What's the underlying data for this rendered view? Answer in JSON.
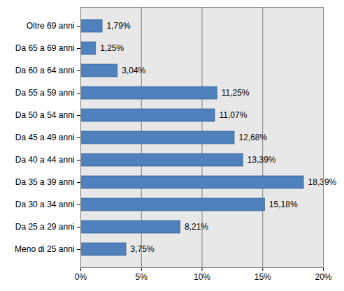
{
  "chart_data": {
    "type": "bar",
    "orientation": "horizontal",
    "categories": [
      "Oltre 69 anni",
      "Da 65 a 69 anni",
      "Da 60 a 64 anni",
      "Da 55 a 59 anni",
      "Da 50 a 54 anni",
      "Da 45 a 49 anni",
      "Da 40 a 44 anni",
      "Da 35 a 39 anni",
      "Da 30 a 34 anni",
      "Da 25 a 29 anni",
      "Meno di 25 anni"
    ],
    "values": [
      1.79,
      1.25,
      3.04,
      11.25,
      11.07,
      12.68,
      13.39,
      18.39,
      15.18,
      8.21,
      3.75
    ],
    "value_labels": [
      "1,79%",
      "1,25%",
      "3,04%",
      "11,25%",
      "11,07%",
      "12,68%",
      "13,39%",
      "18,39%",
      "15,18%",
      "8,21%",
      "3,75%"
    ],
    "data_labels": true,
    "color": "#4f81bd",
    "xlim": [
      0,
      20
    ],
    "xticks": [
      {
        "value": 0,
        "label": "0%"
      },
      {
        "value": 5,
        "label": "5%"
      },
      {
        "value": 10,
        "label": "10%"
      },
      {
        "value": 15,
        "label": "15%"
      },
      {
        "value": 20,
        "label": "20%"
      }
    ],
    "grid": true
  }
}
